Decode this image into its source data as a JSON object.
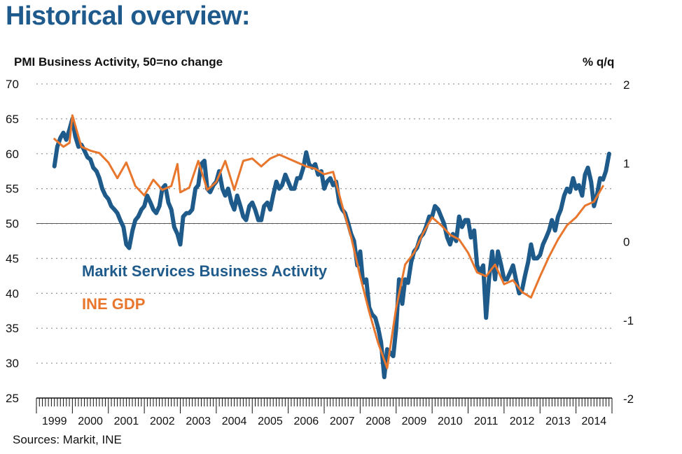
{
  "page": {
    "title": "Historical overview:",
    "source": "Sources: Markit, INE"
  },
  "colors": {
    "blue": "#1e5a8a",
    "orange": "#e8762d",
    "text": "#111111"
  },
  "chart_data": {
    "type": "line",
    "left_axis": {
      "label": "PMI Business Activity, 50=no change",
      "min": 25,
      "max": 70,
      "ticks": [
        25,
        30,
        35,
        40,
        45,
        50,
        55,
        60,
        65,
        70
      ]
    },
    "right_axis": {
      "label": "% q/q",
      "min": -2,
      "max": 2,
      "ticks": [
        -2,
        -1,
        0,
        1,
        2
      ]
    },
    "x_axis": {
      "start": 1999.0,
      "end": 2015.0,
      "labels": [
        "1999",
        "2000",
        "2001",
        "2002",
        "2003",
        "2004",
        "2005",
        "2006",
        "2007",
        "2008",
        "2009",
        "2010",
        "2011",
        "2012",
        "2013",
        "2014"
      ]
    },
    "reference_line": {
      "axis": "left",
      "value": 50
    },
    "grid": "horizontal dotted",
    "series": [
      {
        "name": "Markit Services Business Activity",
        "axis": "left",
        "points": [
          [
            1999.5,
            58.2
          ],
          [
            1999.58,
            61
          ],
          [
            1999.67,
            62.3
          ],
          [
            1999.75,
            63
          ],
          [
            1999.83,
            62
          ],
          [
            1999.92,
            63.5
          ],
          [
            2000.0,
            65
          ],
          [
            2000.08,
            62.5
          ],
          [
            2000.17,
            61
          ],
          [
            2000.25,
            61.3
          ],
          [
            2000.33,
            60.5
          ],
          [
            2000.42,
            59.5
          ],
          [
            2000.5,
            59.2
          ],
          [
            2000.58,
            58
          ],
          [
            2000.67,
            57.5
          ],
          [
            2000.75,
            56.5
          ],
          [
            2000.83,
            55
          ],
          [
            2000.92,
            54
          ],
          [
            2001.0,
            53.5
          ],
          [
            2001.08,
            52.5
          ],
          [
            2001.17,
            52
          ],
          [
            2001.25,
            51.5
          ],
          [
            2001.33,
            50.5
          ],
          [
            2001.42,
            49.5
          ],
          [
            2001.5,
            47
          ],
          [
            2001.58,
            46.5
          ],
          [
            2001.67,
            49
          ],
          [
            2001.75,
            50.5
          ],
          [
            2001.83,
            51
          ],
          [
            2001.92,
            52
          ],
          [
            2002.0,
            52.5
          ],
          [
            2002.08,
            54
          ],
          [
            2002.17,
            53
          ],
          [
            2002.25,
            52
          ],
          [
            2002.33,
            51.5
          ],
          [
            2002.42,
            52.5
          ],
          [
            2002.5,
            55
          ],
          [
            2002.58,
            55.5
          ],
          [
            2002.67,
            53
          ],
          [
            2002.75,
            52
          ],
          [
            2002.83,
            49.5
          ],
          [
            2002.92,
            48.5
          ],
          [
            2003.0,
            47
          ],
          [
            2003.08,
            51
          ],
          [
            2003.17,
            51.5
          ],
          [
            2003.25,
            51.5
          ],
          [
            2003.33,
            52
          ],
          [
            2003.42,
            55
          ],
          [
            2003.5,
            55.5
          ],
          [
            2003.58,
            58.5
          ],
          [
            2003.67,
            59
          ],
          [
            2003.75,
            55
          ],
          [
            2003.83,
            54.5
          ],
          [
            2003.92,
            55.5
          ],
          [
            2004.0,
            56
          ],
          [
            2004.08,
            57.5
          ],
          [
            2004.17,
            55
          ],
          [
            2004.25,
            54
          ],
          [
            2004.33,
            55
          ],
          [
            2004.42,
            53
          ],
          [
            2004.5,
            52
          ],
          [
            2004.58,
            54
          ],
          [
            2004.67,
            52.5
          ],
          [
            2004.75,
            51
          ],
          [
            2004.83,
            50.5
          ],
          [
            2004.92,
            52.5
          ],
          [
            2005.0,
            53
          ],
          [
            2005.08,
            52
          ],
          [
            2005.17,
            50.5
          ],
          [
            2005.25,
            50.5
          ],
          [
            2005.33,
            52.5
          ],
          [
            2005.42,
            53
          ],
          [
            2005.5,
            52
          ],
          [
            2005.58,
            54
          ],
          [
            2005.67,
            56
          ],
          [
            2005.75,
            55
          ],
          [
            2005.83,
            55.5
          ],
          [
            2005.92,
            57
          ],
          [
            2006.0,
            56
          ],
          [
            2006.08,
            55
          ],
          [
            2006.17,
            55
          ],
          [
            2006.25,
            56.5
          ],
          [
            2006.33,
            56.5
          ],
          [
            2006.42,
            58
          ],
          [
            2006.5,
            60.2
          ],
          [
            2006.58,
            58.5
          ],
          [
            2006.67,
            58
          ],
          [
            2006.75,
            58.5
          ],
          [
            2006.83,
            57
          ],
          [
            2006.92,
            57.5
          ],
          [
            2007.0,
            55
          ],
          [
            2007.08,
            56
          ],
          [
            2007.17,
            56.5
          ],
          [
            2007.25,
            55.5
          ],
          [
            2007.33,
            56
          ],
          [
            2007.42,
            53
          ],
          [
            2007.5,
            52
          ],
          [
            2007.58,
            51.5
          ],
          [
            2007.67,
            50
          ],
          [
            2007.75,
            48.5
          ],
          [
            2007.83,
            47.5
          ],
          [
            2007.92,
            44
          ],
          [
            2008.0,
            46
          ],
          [
            2008.08,
            41.5
          ],
          [
            2008.17,
            42
          ],
          [
            2008.25,
            38
          ],
          [
            2008.33,
            37
          ],
          [
            2008.42,
            36.5
          ],
          [
            2008.5,
            35
          ],
          [
            2008.58,
            33
          ],
          [
            2008.67,
            28
          ],
          [
            2008.75,
            32
          ],
          [
            2008.83,
            31.5
          ],
          [
            2008.92,
            31
          ],
          [
            2009.0,
            35
          ],
          [
            2009.08,
            42
          ],
          [
            2009.17,
            38.5
          ],
          [
            2009.25,
            42
          ],
          [
            2009.33,
            41.5
          ],
          [
            2009.42,
            44.5
          ],
          [
            2009.5,
            46
          ],
          [
            2009.58,
            46.5
          ],
          [
            2009.67,
            48
          ],
          [
            2009.75,
            48.5
          ],
          [
            2009.83,
            49.5
          ],
          [
            2009.92,
            51
          ],
          [
            2010.0,
            51
          ],
          [
            2010.08,
            52.5
          ],
          [
            2010.17,
            52
          ],
          [
            2010.25,
            51
          ],
          [
            2010.33,
            50
          ],
          [
            2010.42,
            48
          ],
          [
            2010.5,
            47
          ],
          [
            2010.58,
            48.5
          ],
          [
            2010.67,
            47.5
          ],
          [
            2010.75,
            51
          ],
          [
            2010.83,
            49.5
          ],
          [
            2010.92,
            50.5
          ],
          [
            2011.0,
            50.5
          ],
          [
            2011.08,
            48
          ],
          [
            2011.17,
            49
          ],
          [
            2011.25,
            44
          ],
          [
            2011.33,
            43
          ],
          [
            2011.42,
            44
          ],
          [
            2011.5,
            36.5
          ],
          [
            2011.58,
            42
          ],
          [
            2011.67,
            46
          ],
          [
            2011.75,
            42
          ],
          [
            2011.83,
            46
          ],
          [
            2011.92,
            44
          ],
          [
            2012.0,
            42
          ],
          [
            2012.08,
            42
          ],
          [
            2012.17,
            43
          ],
          [
            2012.25,
            44
          ],
          [
            2012.33,
            42
          ],
          [
            2012.42,
            40
          ],
          [
            2012.5,
            40.5
          ],
          [
            2012.58,
            42.5
          ],
          [
            2012.67,
            44.5
          ],
          [
            2012.75,
            47
          ],
          [
            2012.83,
            45
          ],
          [
            2012.92,
            45
          ],
          [
            2013.0,
            45.5
          ],
          [
            2013.08,
            47
          ],
          [
            2013.17,
            48
          ],
          [
            2013.25,
            49
          ],
          [
            2013.33,
            50.5
          ],
          [
            2013.42,
            49
          ],
          [
            2013.5,
            51
          ],
          [
            2013.58,
            52
          ],
          [
            2013.67,
            54
          ],
          [
            2013.75,
            55
          ],
          [
            2013.83,
            54.5
          ],
          [
            2013.92,
            56.5
          ],
          [
            2014.0,
            55
          ],
          [
            2014.08,
            55.5
          ],
          [
            2014.17,
            54
          ],
          [
            2014.25,
            57
          ],
          [
            2014.33,
            58
          ],
          [
            2014.42,
            56
          ],
          [
            2014.5,
            52.5
          ],
          [
            2014.58,
            54
          ],
          [
            2014.67,
            56.5
          ],
          [
            2014.75,
            56.3
          ],
          [
            2014.83,
            57.5
          ],
          [
            2014.92,
            60
          ]
        ]
      },
      {
        "name": "INE GDP",
        "axis": "right",
        "points": [
          [
            1999.5,
            1.3
          ],
          [
            1999.75,
            1.2
          ],
          [
            1999.92,
            1.25
          ],
          [
            2000.0,
            1.6
          ],
          [
            2000.25,
            1.2
          ],
          [
            2000.5,
            1.15
          ],
          [
            2000.75,
            1.12
          ],
          [
            2001.0,
            1.0
          ],
          [
            2001.25,
            0.8
          ],
          [
            2001.5,
            1.0
          ],
          [
            2001.75,
            0.7
          ],
          [
            2002.0,
            0.58
          ],
          [
            2002.25,
            0.78
          ],
          [
            2002.5,
            0.65
          ],
          [
            2002.75,
            0.7
          ],
          [
            2002.92,
            0.98
          ],
          [
            2003.0,
            0.62
          ],
          [
            2003.25,
            0.68
          ],
          [
            2003.5,
            1.02
          ],
          [
            2003.75,
            0.65
          ],
          [
            2004.0,
            0.75
          ],
          [
            2004.25,
            1.02
          ],
          [
            2004.5,
            0.65
          ],
          [
            2004.75,
            1.02
          ],
          [
            2005.0,
            1.05
          ],
          [
            2005.25,
            0.95
          ],
          [
            2005.5,
            1.05
          ],
          [
            2005.75,
            1.1
          ],
          [
            2006.0,
            1.05
          ],
          [
            2006.25,
            1.0
          ],
          [
            2006.5,
            0.95
          ],
          [
            2006.75,
            0.92
          ],
          [
            2007.0,
            0.85
          ],
          [
            2007.25,
            0.88
          ],
          [
            2007.5,
            0.45
          ],
          [
            2007.75,
            0.05
          ],
          [
            2008.0,
            -0.45
          ],
          [
            2008.25,
            -0.9
          ],
          [
            2008.5,
            -1.3
          ],
          [
            2008.75,
            -1.62
          ],
          [
            2009.0,
            -0.85
          ],
          [
            2009.25,
            -0.3
          ],
          [
            2009.5,
            -0.15
          ],
          [
            2009.75,
            0.1
          ],
          [
            2010.0,
            0.3
          ],
          [
            2010.25,
            0.2
          ],
          [
            2010.5,
            0.08
          ],
          [
            2010.75,
            0.02
          ],
          [
            2011.0,
            -0.15
          ],
          [
            2011.25,
            -0.4
          ],
          [
            2011.5,
            -0.45
          ],
          [
            2011.75,
            -0.3
          ],
          [
            2012.0,
            -0.55
          ],
          [
            2012.25,
            -0.5
          ],
          [
            2012.5,
            -0.65
          ],
          [
            2012.75,
            -0.72
          ],
          [
            2013.0,
            -0.45
          ],
          [
            2013.25,
            -0.2
          ],
          [
            2013.5,
            0.02
          ],
          [
            2013.75,
            0.2
          ],
          [
            2014.0,
            0.3
          ],
          [
            2014.25,
            0.45
          ],
          [
            2014.5,
            0.5
          ],
          [
            2014.75,
            0.7
          ]
        ]
      }
    ]
  }
}
